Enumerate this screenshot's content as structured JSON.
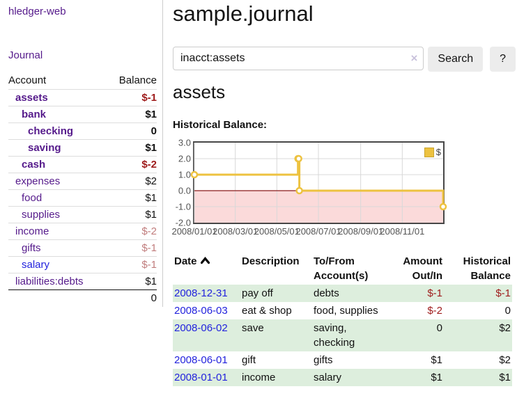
{
  "sidebar": {
    "brand": "hledger-web",
    "nav": {
      "journal": "Journal"
    },
    "accounts_table": {
      "headers": {
        "account": "Account",
        "balance": "Balance"
      },
      "rows": [
        {
          "name": "assets",
          "depth": 0,
          "bold": true,
          "balance": "$-1",
          "balance_style": "negative"
        },
        {
          "name": "bank",
          "depth": 1,
          "bold": true,
          "balance": "$1",
          "balance_style": "normal"
        },
        {
          "name": "checking",
          "depth": 2,
          "bold": true,
          "balance": "0",
          "balance_style": "normal"
        },
        {
          "name": "saving",
          "depth": 2,
          "bold": true,
          "balance": "$1",
          "balance_style": "normal"
        },
        {
          "name": "cash",
          "depth": 1,
          "bold": true,
          "balance": "$-2",
          "balance_style": "negative"
        },
        {
          "name": "expenses",
          "depth": 0,
          "bold": false,
          "balance": "$2",
          "balance_style": "normal"
        },
        {
          "name": "food",
          "depth": 1,
          "bold": false,
          "balance": "$1",
          "balance_style": "normal"
        },
        {
          "name": "supplies",
          "depth": 1,
          "bold": false,
          "balance": "$1",
          "balance_style": "normal"
        },
        {
          "name": "income",
          "depth": 0,
          "bold": false,
          "balance": "$-2",
          "balance_style": "negative-muted"
        },
        {
          "name": "gifts",
          "depth": 1,
          "bold": false,
          "balance": "$-1",
          "balance_style": "negative-muted"
        },
        {
          "name": "salary",
          "depth": 1,
          "bold": false,
          "link_style": "unvisited",
          "balance": "$-1",
          "balance_style": "negative-muted"
        },
        {
          "name": "liabilities:debts",
          "depth": 0,
          "bold": false,
          "balance": "$1",
          "balance_style": "normal"
        }
      ],
      "total": "0"
    }
  },
  "header": {
    "title": "sample.journal"
  },
  "search": {
    "value": "inacct:assets",
    "clear_icon": "×",
    "button_label": "Search",
    "help_label": "?"
  },
  "account_page": {
    "heading": "assets",
    "chart_label": "Historical Balance:"
  },
  "chart_data": {
    "type": "line",
    "title": "Historical Balance:",
    "legend": [
      {
        "label": "$",
        "color": "#edc240",
        "position": "top-right"
      }
    ],
    "series": [
      {
        "name": "$",
        "color": "#edc240",
        "steps": true,
        "points": [
          {
            "date": "2008-01-01",
            "day": 0,
            "value": 1
          },
          {
            "date": "2008-06-01",
            "day": 152,
            "value": 2
          },
          {
            "date": "2008-06-02",
            "day": 153,
            "value": 2
          },
          {
            "date": "2008-06-03",
            "day": 154,
            "value": 0
          },
          {
            "date": "2008-12-31",
            "day": 365,
            "value": -1
          }
        ]
      }
    ],
    "x_axis": {
      "range_days": [
        0,
        365
      ],
      "tick_days": [
        0,
        60,
        121,
        182,
        244,
        305
      ],
      "tick_labels": [
        "2008/01/01",
        "2008/03/01",
        "2008/05/01",
        "2008/07/01",
        "2008/09/01",
        "2008/11/01"
      ]
    },
    "y_axis": {
      "min": -2,
      "max": 3,
      "tick_labels": [
        "3.0",
        "2.0",
        "1.0",
        "0.0",
        "-1.0",
        "-2.0"
      ],
      "grid_values": [
        2,
        1,
        -1
      ]
    },
    "grid": true,
    "grid_color": "#d8d8d8",
    "zero_line_color": "#8b1a1a",
    "negative_region_color": "#fbdada"
  },
  "register": {
    "headers": {
      "date": "Date",
      "description": "Description",
      "accounts": "To/From Account(s)",
      "amount": "Amount Out/In",
      "balance": "Historical Balance"
    },
    "sort": {
      "column": "date",
      "direction": "ascending"
    },
    "rows": [
      {
        "date": "2008-12-31",
        "description": "pay off",
        "accounts": "debts",
        "amount": "$-1",
        "amount_style": "negative",
        "balance": "$-1",
        "balance_style": "negative"
      },
      {
        "date": "2008-06-03",
        "description": "eat & shop",
        "accounts": "food, supplies",
        "amount": "$-2",
        "amount_style": "negative",
        "balance": "0",
        "balance_style": "normal"
      },
      {
        "date": "2008-06-02",
        "description": "save",
        "accounts": "saving, checking",
        "amount": "0",
        "amount_style": "normal",
        "balance": "$2",
        "balance_style": "normal"
      },
      {
        "date": "2008-06-01",
        "description": "gift",
        "accounts": "gifts",
        "amount": "$1",
        "amount_style": "normal",
        "balance": "$2",
        "balance_style": "normal"
      },
      {
        "date": "2008-01-01",
        "description": "income",
        "accounts": "salary",
        "amount": "$1",
        "amount_style": "normal",
        "balance": "$1",
        "balance_style": "normal"
      }
    ]
  },
  "colors": {
    "link_visited": "#551a8b",
    "link_unvisited": "#2222dd",
    "negative_strong": "#9e1b1b",
    "negative_muted": "#c17d7d",
    "row_stripe_green": "#ddeedd",
    "series_gold": "#edc240"
  }
}
